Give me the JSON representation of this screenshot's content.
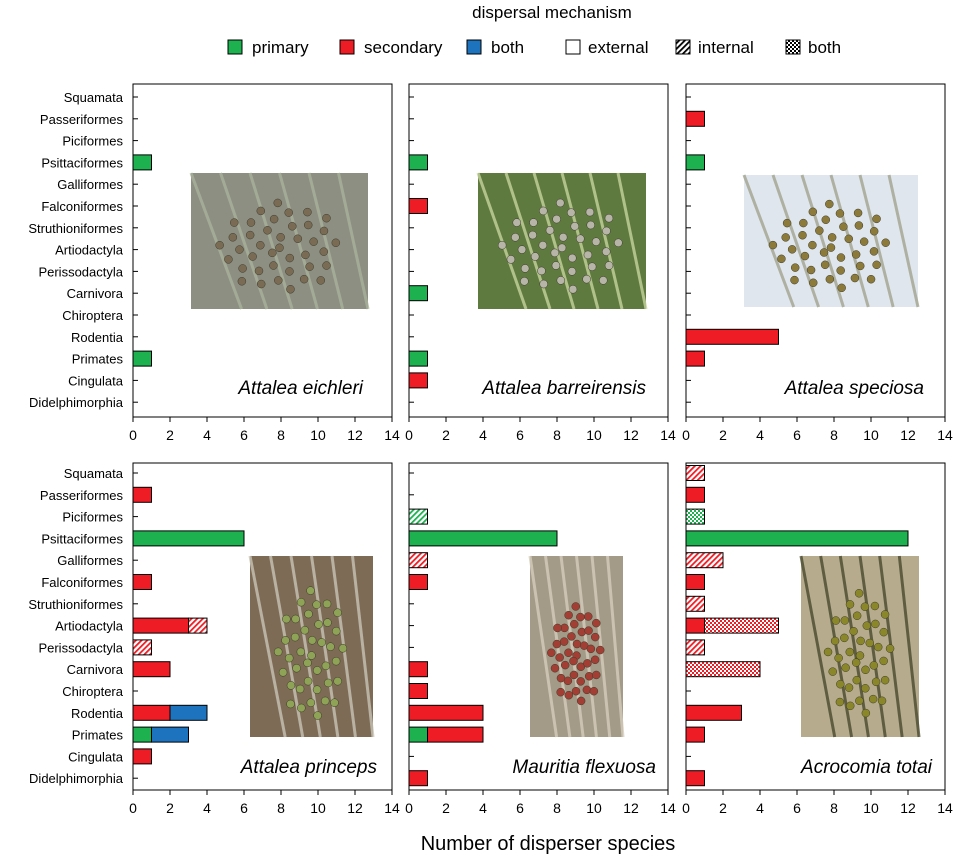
{
  "legend": {
    "title": "dispersal mechanism",
    "color_items": [
      {
        "label": "primary",
        "color": "#1db150"
      },
      {
        "label": "secondary",
        "color": "#ee1c24"
      },
      {
        "label": "both",
        "color": "#1e73be"
      }
    ],
    "pattern_items": [
      {
        "label": "external",
        "pattern": "solid"
      },
      {
        "label": "internal",
        "pattern": "hatch"
      },
      {
        "label": "both",
        "pattern": "check"
      }
    ]
  },
  "xlabel": "Number of disperser species",
  "chart_data": {
    "type": "bar",
    "orientation": "horizontal",
    "stacked": true,
    "categories": [
      "Squamata",
      "Passeriformes",
      "Piciformes",
      "Psittaciformes",
      "Galliformes",
      "Falconiformes",
      "Struthioniformes",
      "Artiodactyla",
      "Perissodactyla",
      "Carnivora",
      "Chiroptera",
      "Rodentia",
      "Primates",
      "Cingulata",
      "Didelphimorphia"
    ],
    "xlim": [
      0,
      14
    ],
    "xticks": [
      0,
      2,
      4,
      6,
      8,
      10,
      12,
      14
    ],
    "xlabel": "Number of disperser species",
    "panels": [
      {
        "species": "Attalea eichleri",
        "photo": "palm-with-fruit-cluster-on-ground",
        "bars": [
          {
            "category": "Psittaciformes",
            "segments": [
              {
                "mechanism": "primary",
                "pattern": "external",
                "value": 1
              }
            ]
          },
          {
            "category": "Primates",
            "segments": [
              {
                "mechanism": "primary",
                "pattern": "external",
                "value": 1
              }
            ]
          }
        ]
      },
      {
        "species": "Attalea barreirensis",
        "photo": "palm-with-fruit-cluster-between-leaves",
        "bars": [
          {
            "category": "Psittaciformes",
            "segments": [
              {
                "mechanism": "primary",
                "pattern": "external",
                "value": 1
              }
            ]
          },
          {
            "category": "Falconiformes",
            "segments": [
              {
                "mechanism": "secondary",
                "pattern": "external",
                "value": 1
              }
            ]
          },
          {
            "category": "Carnivora",
            "segments": [
              {
                "mechanism": "primary",
                "pattern": "external",
                "value": 1
              }
            ]
          },
          {
            "category": "Primates",
            "segments": [
              {
                "mechanism": "primary",
                "pattern": "external",
                "value": 1
              }
            ]
          },
          {
            "category": "Cingulata",
            "segments": [
              {
                "mechanism": "secondary",
                "pattern": "external",
                "value": 1
              }
            ]
          }
        ]
      },
      {
        "species": "Attalea speciosa",
        "photo": "palm-with-hanging-fruit-bunches",
        "bars": [
          {
            "category": "Passeriformes",
            "segments": [
              {
                "mechanism": "secondary",
                "pattern": "external",
                "value": 1
              }
            ]
          },
          {
            "category": "Psittaciformes",
            "segments": [
              {
                "mechanism": "primary",
                "pattern": "external",
                "value": 1
              }
            ]
          },
          {
            "category": "Rodentia",
            "segments": [
              {
                "mechanism": "secondary",
                "pattern": "external",
                "value": 5
              }
            ]
          },
          {
            "category": "Primates",
            "segments": [
              {
                "mechanism": "secondary",
                "pattern": "external",
                "value": 1
              }
            ]
          }
        ]
      },
      {
        "species": "Attalea princeps",
        "photo": "green-fruit-bunch-on-palm",
        "bars": [
          {
            "category": "Passeriformes",
            "segments": [
              {
                "mechanism": "secondary",
                "pattern": "external",
                "value": 1
              }
            ]
          },
          {
            "category": "Psittaciformes",
            "segments": [
              {
                "mechanism": "primary",
                "pattern": "external",
                "value": 6
              }
            ]
          },
          {
            "category": "Falconiformes",
            "segments": [
              {
                "mechanism": "secondary",
                "pattern": "external",
                "value": 1
              }
            ]
          },
          {
            "category": "Artiodactyla",
            "segments": [
              {
                "mechanism": "secondary",
                "pattern": "external",
                "value": 3
              },
              {
                "mechanism": "secondary",
                "pattern": "internal",
                "value": 1
              }
            ]
          },
          {
            "category": "Perissodactyla",
            "segments": [
              {
                "mechanism": "secondary",
                "pattern": "internal",
                "value": 1
              }
            ]
          },
          {
            "category": "Carnivora",
            "segments": [
              {
                "mechanism": "secondary",
                "pattern": "external",
                "value": 2
              }
            ]
          },
          {
            "category": "Rodentia",
            "segments": [
              {
                "mechanism": "secondary",
                "pattern": "external",
                "value": 2
              },
              {
                "mechanism": "both",
                "pattern": "external",
                "value": 2
              }
            ]
          },
          {
            "category": "Primates",
            "segments": [
              {
                "mechanism": "primary",
                "pattern": "external",
                "value": 1
              },
              {
                "mechanism": "both",
                "pattern": "external",
                "value": 2
              }
            ]
          },
          {
            "category": "Cingulata",
            "segments": [
              {
                "mechanism": "secondary",
                "pattern": "external",
                "value": 1
              }
            ]
          }
        ]
      },
      {
        "species": "Mauritia flexuosa",
        "photo": "red-fruit-bunch-on-palm",
        "bars": [
          {
            "category": "Piciformes",
            "segments": [
              {
                "mechanism": "primary",
                "pattern": "internal",
                "value": 1
              }
            ]
          },
          {
            "category": "Psittaciformes",
            "segments": [
              {
                "mechanism": "primary",
                "pattern": "external",
                "value": 8
              }
            ]
          },
          {
            "category": "Galliformes",
            "segments": [
              {
                "mechanism": "secondary",
                "pattern": "internal",
                "value": 1
              }
            ]
          },
          {
            "category": "Falconiformes",
            "segments": [
              {
                "mechanism": "secondary",
                "pattern": "external",
                "value": 1
              }
            ]
          },
          {
            "category": "Carnivora",
            "segments": [
              {
                "mechanism": "secondary",
                "pattern": "external",
                "value": 1
              }
            ]
          },
          {
            "category": "Chiroptera",
            "segments": [
              {
                "mechanism": "secondary",
                "pattern": "external",
                "value": 1
              }
            ]
          },
          {
            "category": "Rodentia",
            "segments": [
              {
                "mechanism": "secondary",
                "pattern": "external",
                "value": 4
              }
            ]
          },
          {
            "category": "Primates",
            "segments": [
              {
                "mechanism": "primary",
                "pattern": "external",
                "value": 1
              },
              {
                "mechanism": "secondary",
                "pattern": "external",
                "value": 3
              }
            ]
          },
          {
            "category": "Didelphimorphia",
            "segments": [
              {
                "mechanism": "secondary",
                "pattern": "external",
                "value": 1
              }
            ]
          }
        ]
      },
      {
        "species": "Acrocomia totai",
        "photo": "yellow-fruit-bunch-on-palm",
        "bars": [
          {
            "category": "Squamata",
            "segments": [
              {
                "mechanism": "secondary",
                "pattern": "internal",
                "value": 1
              }
            ]
          },
          {
            "category": "Passeriformes",
            "segments": [
              {
                "mechanism": "secondary",
                "pattern": "external",
                "value": 1
              }
            ]
          },
          {
            "category": "Piciformes",
            "segments": [
              {
                "mechanism": "primary",
                "pattern": "check",
                "value": 1
              }
            ]
          },
          {
            "category": "Psittaciformes",
            "segments": [
              {
                "mechanism": "primary",
                "pattern": "external",
                "value": 12
              }
            ]
          },
          {
            "category": "Galliformes",
            "segments": [
              {
                "mechanism": "secondary",
                "pattern": "internal",
                "value": 2
              }
            ]
          },
          {
            "category": "Falconiformes",
            "segments": [
              {
                "mechanism": "secondary",
                "pattern": "external",
                "value": 1
              }
            ]
          },
          {
            "category": "Struthioniformes",
            "segments": [
              {
                "mechanism": "secondary",
                "pattern": "internal",
                "value": 1
              }
            ]
          },
          {
            "category": "Artiodactyla",
            "segments": [
              {
                "mechanism": "secondary",
                "pattern": "external",
                "value": 1
              },
              {
                "mechanism": "secondary",
                "pattern": "check",
                "value": 4
              }
            ]
          },
          {
            "category": "Perissodactyla",
            "segments": [
              {
                "mechanism": "secondary",
                "pattern": "internal",
                "value": 1
              }
            ]
          },
          {
            "category": "Carnivora",
            "segments": [
              {
                "mechanism": "secondary",
                "pattern": "check",
                "value": 4
              }
            ]
          },
          {
            "category": "Rodentia",
            "segments": [
              {
                "mechanism": "secondary",
                "pattern": "external",
                "value": 3
              }
            ]
          },
          {
            "category": "Primates",
            "segments": [
              {
                "mechanism": "secondary",
                "pattern": "external",
                "value": 1
              }
            ]
          },
          {
            "category": "Didelphimorphia",
            "segments": [
              {
                "mechanism": "secondary",
                "pattern": "external",
                "value": 1
              }
            ]
          }
        ]
      }
    ]
  }
}
